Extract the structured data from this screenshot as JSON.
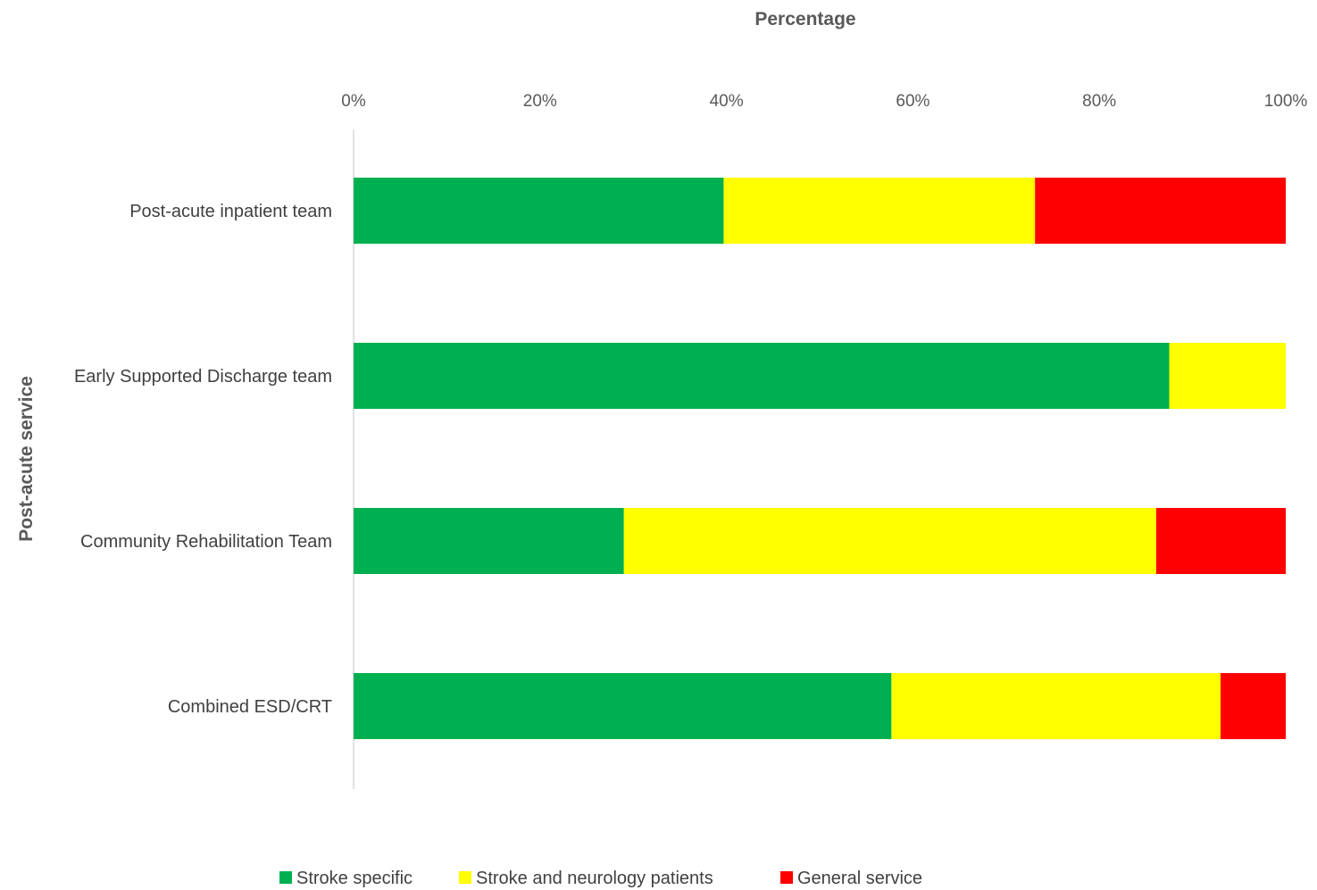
{
  "chart_data": {
    "type": "bar",
    "orientation": "horizontal",
    "stacked": true,
    "percent_stacked": true,
    "title": "",
    "xlabel": "Percentage",
    "ylabel": "Post-acute service",
    "xlim": [
      0,
      100
    ],
    "x_axis_position": "top",
    "ticks": [
      "0%",
      "20%",
      "40%",
      "60%",
      "80%",
      "100%"
    ],
    "tick_values": [
      0,
      20,
      40,
      60,
      80,
      100
    ],
    "categories": [
      "Post-acute inpatient team",
      "Early Supported Discharge team",
      "Community Rehabilitation Team",
      "Combined ESD/CRT"
    ],
    "series": [
      {
        "name": "Stroke specific",
        "color": "#00b050",
        "values": [
          39.7,
          87.5,
          29.0,
          57.7
        ]
      },
      {
        "name": "Stroke and neurology patients",
        "color": "#ffff00",
        "values": [
          33.4,
          12.5,
          57.1,
          35.3
        ]
      },
      {
        "name": "General service",
        "color": "#ff0000",
        "values": [
          26.9,
          0,
          13.9,
          7.0
        ]
      }
    ],
    "grid": false,
    "legend_position": "bottom"
  }
}
